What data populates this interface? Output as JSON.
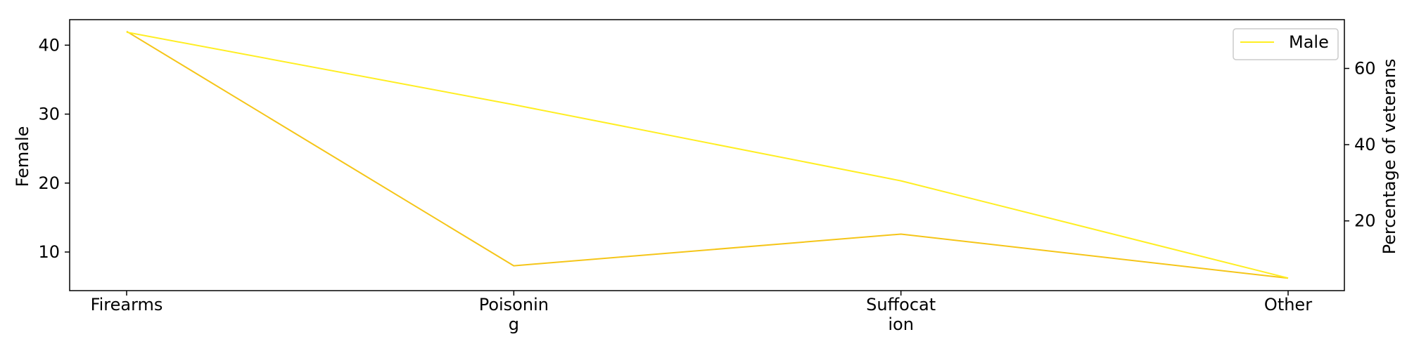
{
  "chart_data": {
    "type": "line",
    "categories": [
      "Firearms",
      "Poisoning",
      "Suffocation",
      "Other"
    ],
    "category_labels": [
      [
        "Firearms"
      ],
      [
        "Poisonin",
        "g"
      ],
      [
        "Suffocat",
        "ion"
      ],
      [
        "Other"
      ]
    ],
    "series": [
      {
        "name": "",
        "axis": "left",
        "color": "#F5C518",
        "values": [
          42.0,
          8.0,
          12.6,
          6.2
        ]
      },
      {
        "name": "Male",
        "axis": "right",
        "color": "#FFEE22",
        "values": [
          69.5,
          50.5,
          30.5,
          5.0
        ]
      }
    ],
    "y_left": {
      "label": "Female",
      "ticks": [
        10,
        20,
        30,
        40
      ],
      "ylim": [
        4.4,
        43.7
      ]
    },
    "y_right": {
      "label": "Percentage of veterans",
      "ticks": [
        20,
        40,
        60
      ],
      "ylim": [
        1.7,
        72.8
      ]
    },
    "legend": {
      "placement": "top-right",
      "entries": [
        "Male"
      ]
    },
    "grid": false
  }
}
